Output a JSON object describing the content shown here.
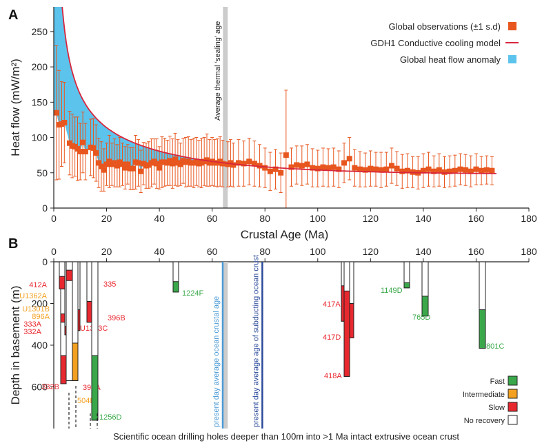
{
  "chart_data": [
    {
      "panel": "A",
      "type": "scatter",
      "xlabel": "Crustal Age (Ma)",
      "ylabel": "Heat flow (mW/m²)",
      "xlim": [
        0,
        180
      ],
      "ylim": [
        0,
        285
      ],
      "xticks": [
        0,
        20,
        40,
        60,
        80,
        100,
        120,
        140,
        160,
        180
      ],
      "yticks": [
        0,
        50,
        100,
        150,
        200,
        250
      ],
      "grid": false,
      "legend_position": "top-right",
      "legend": [
        {
          "label": "Global observations (±1 s.d)",
          "color": "#e8561f",
          "kind": "square"
        },
        {
          "label": "GDH1 Conductive cooling model",
          "color": "#d7263d",
          "kind": "line"
        },
        {
          "label": "Global heat flow anomaly",
          "color": "#5cc4ec",
          "kind": "square"
        }
      ],
      "annotation": {
        "text": "Average thermal ‘sealing’ age",
        "x": 65,
        "color": "#cccccc"
      },
      "series": [
        {
          "name": "Global observations (±1 s.d)",
          "color": "#e8561f",
          "points": [
            [
              1,
              135,
              95
            ],
            [
              2,
              118,
              77
            ],
            [
              3,
              119,
              60
            ],
            [
              4,
              121,
              57
            ],
            [
              6,
              92,
              45
            ],
            [
              7,
              88,
              45
            ],
            [
              8,
              87,
              42
            ],
            [
              9,
              84,
              45
            ],
            [
              10,
              80,
              40
            ],
            [
              11,
              93,
              43
            ],
            [
              12,
              80,
              40
            ],
            [
              14,
              86,
              40
            ],
            [
              15,
              85,
              42
            ],
            [
              16,
              78,
              40
            ],
            [
              17,
              64,
              35
            ],
            [
              18,
              59,
              35
            ],
            [
              19,
              54,
              30
            ],
            [
              20,
              62,
              30
            ],
            [
              21,
              66,
              37
            ],
            [
              22,
              62,
              30
            ],
            [
              23,
              64,
              34
            ],
            [
              24,
              60,
              30
            ],
            [
              25,
              65,
              35
            ],
            [
              26,
              62,
              30
            ],
            [
              27,
              57,
              30
            ],
            [
              28,
              62,
              28
            ],
            [
              29,
              56,
              30
            ],
            [
              30,
              56,
              30
            ],
            [
              31,
              65,
              38
            ],
            [
              32,
              64,
              33
            ],
            [
              33,
              52,
              30
            ],
            [
              34,
              63,
              30
            ],
            [
              35,
              60,
              32
            ],
            [
              36,
              61,
              33
            ],
            [
              37,
              64,
              34
            ],
            [
              38,
              66,
              32
            ],
            [
              39,
              63,
              35
            ],
            [
              40,
              57,
              30
            ],
            [
              41,
              65,
              36
            ],
            [
              42,
              65,
              34
            ],
            [
              43,
              64,
              32
            ],
            [
              44,
              67,
              35
            ],
            [
              45,
              63,
              35
            ],
            [
              46,
              69,
              37
            ],
            [
              47,
              64,
              33
            ],
            [
              48,
              62,
              30
            ],
            [
              49,
              67,
              32
            ],
            [
              50,
              65,
              35
            ],
            [
              51,
              66,
              35
            ],
            [
              52,
              64,
              33
            ],
            [
              53,
              64,
              35
            ],
            [
              54,
              66,
              34
            ],
            [
              55,
              63,
              33
            ],
            [
              56,
              64,
              35
            ],
            [
              57,
              66,
              34
            ],
            [
              58,
              68,
              37
            ],
            [
              59,
              64,
              33
            ],
            [
              60,
              66,
              34
            ],
            [
              61,
              64,
              33
            ],
            [
              62,
              64,
              34
            ],
            [
              63,
              66,
              35
            ],
            [
              64,
              63,
              33
            ],
            [
              66,
              62,
              32
            ],
            [
              67,
              64,
              33
            ],
            [
              68,
              61,
              31
            ],
            [
              70,
              64,
              33
            ],
            [
              72,
              63,
              32
            ],
            [
              74,
              66,
              33
            ],
            [
              76,
              63,
              32
            ],
            [
              78,
              60,
              30
            ],
            [
              80,
              57,
              28
            ],
            [
              82,
              52,
              27
            ],
            [
              84,
              55,
              28
            ],
            [
              86,
              50,
              28
            ],
            [
              88,
              75,
              92
            ],
            [
              90,
              58,
              27
            ],
            [
              92,
              61,
              27
            ],
            [
              94,
              60,
              28
            ],
            [
              96,
              62,
              28
            ],
            [
              98,
              57,
              27
            ],
            [
              100,
              56,
              26
            ],
            [
              102,
              58,
              27
            ],
            [
              104,
              57,
              27
            ],
            [
              106,
              58,
              27
            ],
            [
              108,
              55,
              26
            ],
            [
              110,
              64,
              28
            ],
            [
              112,
              70,
              30
            ],
            [
              114,
              57,
              26
            ],
            [
              116,
              55,
              25
            ],
            [
              118,
              54,
              24
            ],
            [
              120,
              56,
              25
            ],
            [
              122,
              55,
              24
            ],
            [
              124,
              54,
              25
            ],
            [
              126,
              55,
              24
            ],
            [
              128,
              60,
              25
            ],
            [
              130,
              56,
              24
            ],
            [
              132,
              52,
              24
            ],
            [
              134,
              53,
              24
            ],
            [
              136,
              51,
              22
            ],
            [
              138,
              50,
              23
            ],
            [
              140,
              53,
              24
            ],
            [
              142,
              55,
              24
            ],
            [
              144,
              52,
              22
            ],
            [
              146,
              54,
              23
            ],
            [
              148,
              51,
              22
            ],
            [
              150,
              52,
              22
            ],
            [
              152,
              53,
              22
            ],
            [
              154,
              55,
              22
            ],
            [
              156,
              54,
              22
            ],
            [
              158,
              52,
              22
            ],
            [
              160,
              55,
              22
            ],
            [
              162,
              53,
              20
            ],
            [
              164,
              54,
              20
            ],
            [
              166,
              53,
              20
            ]
          ]
        }
      ]
    },
    {
      "panel": "B",
      "type": "bar",
      "xlabel": "Scientific ocean drilling holes deeper than 100m into >1 Ma intact extrusive ocean crust",
      "ylabel": "Depth in basement (m)",
      "xlim": [
        0,
        180
      ],
      "ylim": [
        800,
        0
      ],
      "xticks": [
        0,
        20,
        40,
        60,
        80,
        100,
        120,
        140,
        160,
        180
      ],
      "yticks": [
        0,
        200,
        400,
        600
      ],
      "legend_position": "bottom-right",
      "legend": [
        {
          "label": "Fast",
          "color": "#3aa84a"
        },
        {
          "label": "Intermediate",
          "color": "#f3a020"
        },
        {
          "label": "Slow",
          "color": "#e8282f"
        },
        {
          "label": "No recovery",
          "color": "#ffffff"
        }
      ],
      "reference_lines": [
        {
          "label": "present day average ocean crustal age",
          "x": 64,
          "color": "#4a9ad6"
        },
        {
          "label": "present day average age of subducting ocean crust",
          "x": 79,
          "color": "#2b4a9a"
        }
      ],
      "holes": [
        {
          "name": "332B",
          "age": 1.2,
          "color": "#e8282f",
          "top": 0,
          "bottom": 585,
          "segments": [
            [
              0,
              130,
              "#e8282f"
            ],
            [
              250,
              290,
              "#e8282f"
            ],
            [
              450,
              585,
              "#e8282f"
            ]
          ]
        },
        {
          "name": "412A",
          "age": 1.8,
          "color": "#e8282f",
          "top": 0,
          "bottom": 130,
          "segments": [
            [
              70,
              130,
              "#e8282f"
            ]
          ]
        },
        {
          "name": "U1362A",
          "age": 3.0,
          "color": "#f3a020",
          "top": 0,
          "bottom": 200,
          "segments": [
            [
              140,
              200,
              "#f3a020"
            ]
          ]
        },
        {
          "name": "U1301B",
          "age": 3.4,
          "color": "#f3a020",
          "top": 0,
          "bottom": 240,
          "segments": [
            [
              200,
              240,
              "#f3a020"
            ]
          ]
        },
        {
          "name": "896A",
          "age": 5.9,
          "color": "#f3a020",
          "top": 0,
          "bottom": 290,
          "segments": [
            [
              220,
              290,
              "#f3a020"
            ]
          ]
        },
        {
          "name": "333A",
          "age": 3.5,
          "color": "#e8282f",
          "top": 0,
          "bottom": 320,
          "segments": [
            [
              270,
              320,
              "#e8282f"
            ]
          ]
        },
        {
          "name": "332A",
          "age": 3.5,
          "color": "#e8282f",
          "top": 0,
          "bottom": 350,
          "segments": [
            [
              310,
              350,
              "#e8282f"
            ]
          ]
        },
        {
          "name": "U1383C",
          "age": 7.8,
          "color": "#e8282f",
          "top": 0,
          "bottom": 330,
          "segments": [
            [
              230,
              330,
              "#e8282f"
            ]
          ]
        },
        {
          "name": "504B",
          "age": 6.9,
          "color": "#f3a020",
          "top": 0,
          "bottom": 570,
          "segments": [
            [
              390,
              570,
              "#f3a020"
            ]
          ]
        },
        {
          "name": "395A",
          "age": 7.3,
          "color": "#e8282f",
          "top": 0,
          "bottom": 570,
          "segments": [
            [
              40,
              90,
              "#e8282f"
            ]
          ]
        },
        {
          "name": "396B",
          "age": 12.5,
          "color": "#e8282f",
          "top": 0,
          "bottom": 290,
          "segments": [
            [
              190,
              290,
              "#e8282f"
            ]
          ]
        },
        {
          "name": "335",
          "age": 13.0,
          "color": "#e8282f",
          "top": 0,
          "bottom": 120,
          "segments": [
            [
              60,
              120,
              "#e8282f"
            ]
          ]
        },
        {
          "name": "1256D",
          "age": 15.0,
          "color": "#3aa84a",
          "top": 0,
          "bottom": 760,
          "segments": [
            [
              450,
              760,
              "#3aa84a"
            ]
          ]
        },
        {
          "name": "1224F",
          "age": 46.0,
          "color": "#3aa84a",
          "top": 0,
          "bottom": 145,
          "segments": [
            [
              95,
              145,
              "#3aa84a"
            ]
          ]
        },
        {
          "name": "417A",
          "age": 108.5,
          "color": "#e8282f",
          "top": 0,
          "bottom": 285,
          "segments": [
            [
              115,
              285,
              "#e8282f"
            ]
          ]
        },
        {
          "name": "417D",
          "age": 109.5,
          "color": "#e8282f",
          "top": 0,
          "bottom": 365,
          "segments": [
            [
              200,
              365,
              "#e8282f"
            ]
          ]
        },
        {
          "name": "418A",
          "age": 110.5,
          "color": "#e8282f",
          "top": 0,
          "bottom": 550,
          "segments": [
            [
              140,
              550,
              "#e8282f"
            ]
          ]
        },
        {
          "name": "1149D",
          "age": 133.0,
          "color": "#3aa84a",
          "top": 0,
          "bottom": 125,
          "segments": [
            [
              100,
              125,
              "#3aa84a"
            ]
          ]
        },
        {
          "name": "765D",
          "age": 140.0,
          "color": "#3aa84a",
          "top": 0,
          "bottom": 260,
          "segments": [
            [
              165,
              260,
              "#3aa84a"
            ]
          ]
        },
        {
          "name": "801C",
          "age": 169.0,
          "color": "#3aa84a",
          "top": 0,
          "bottom": 415,
          "segments": [
            [
              230,
              415,
              "#3aa84a"
            ]
          ]
        }
      ]
    }
  ],
  "labels": {
    "panelA": "A",
    "panelB": "B"
  }
}
